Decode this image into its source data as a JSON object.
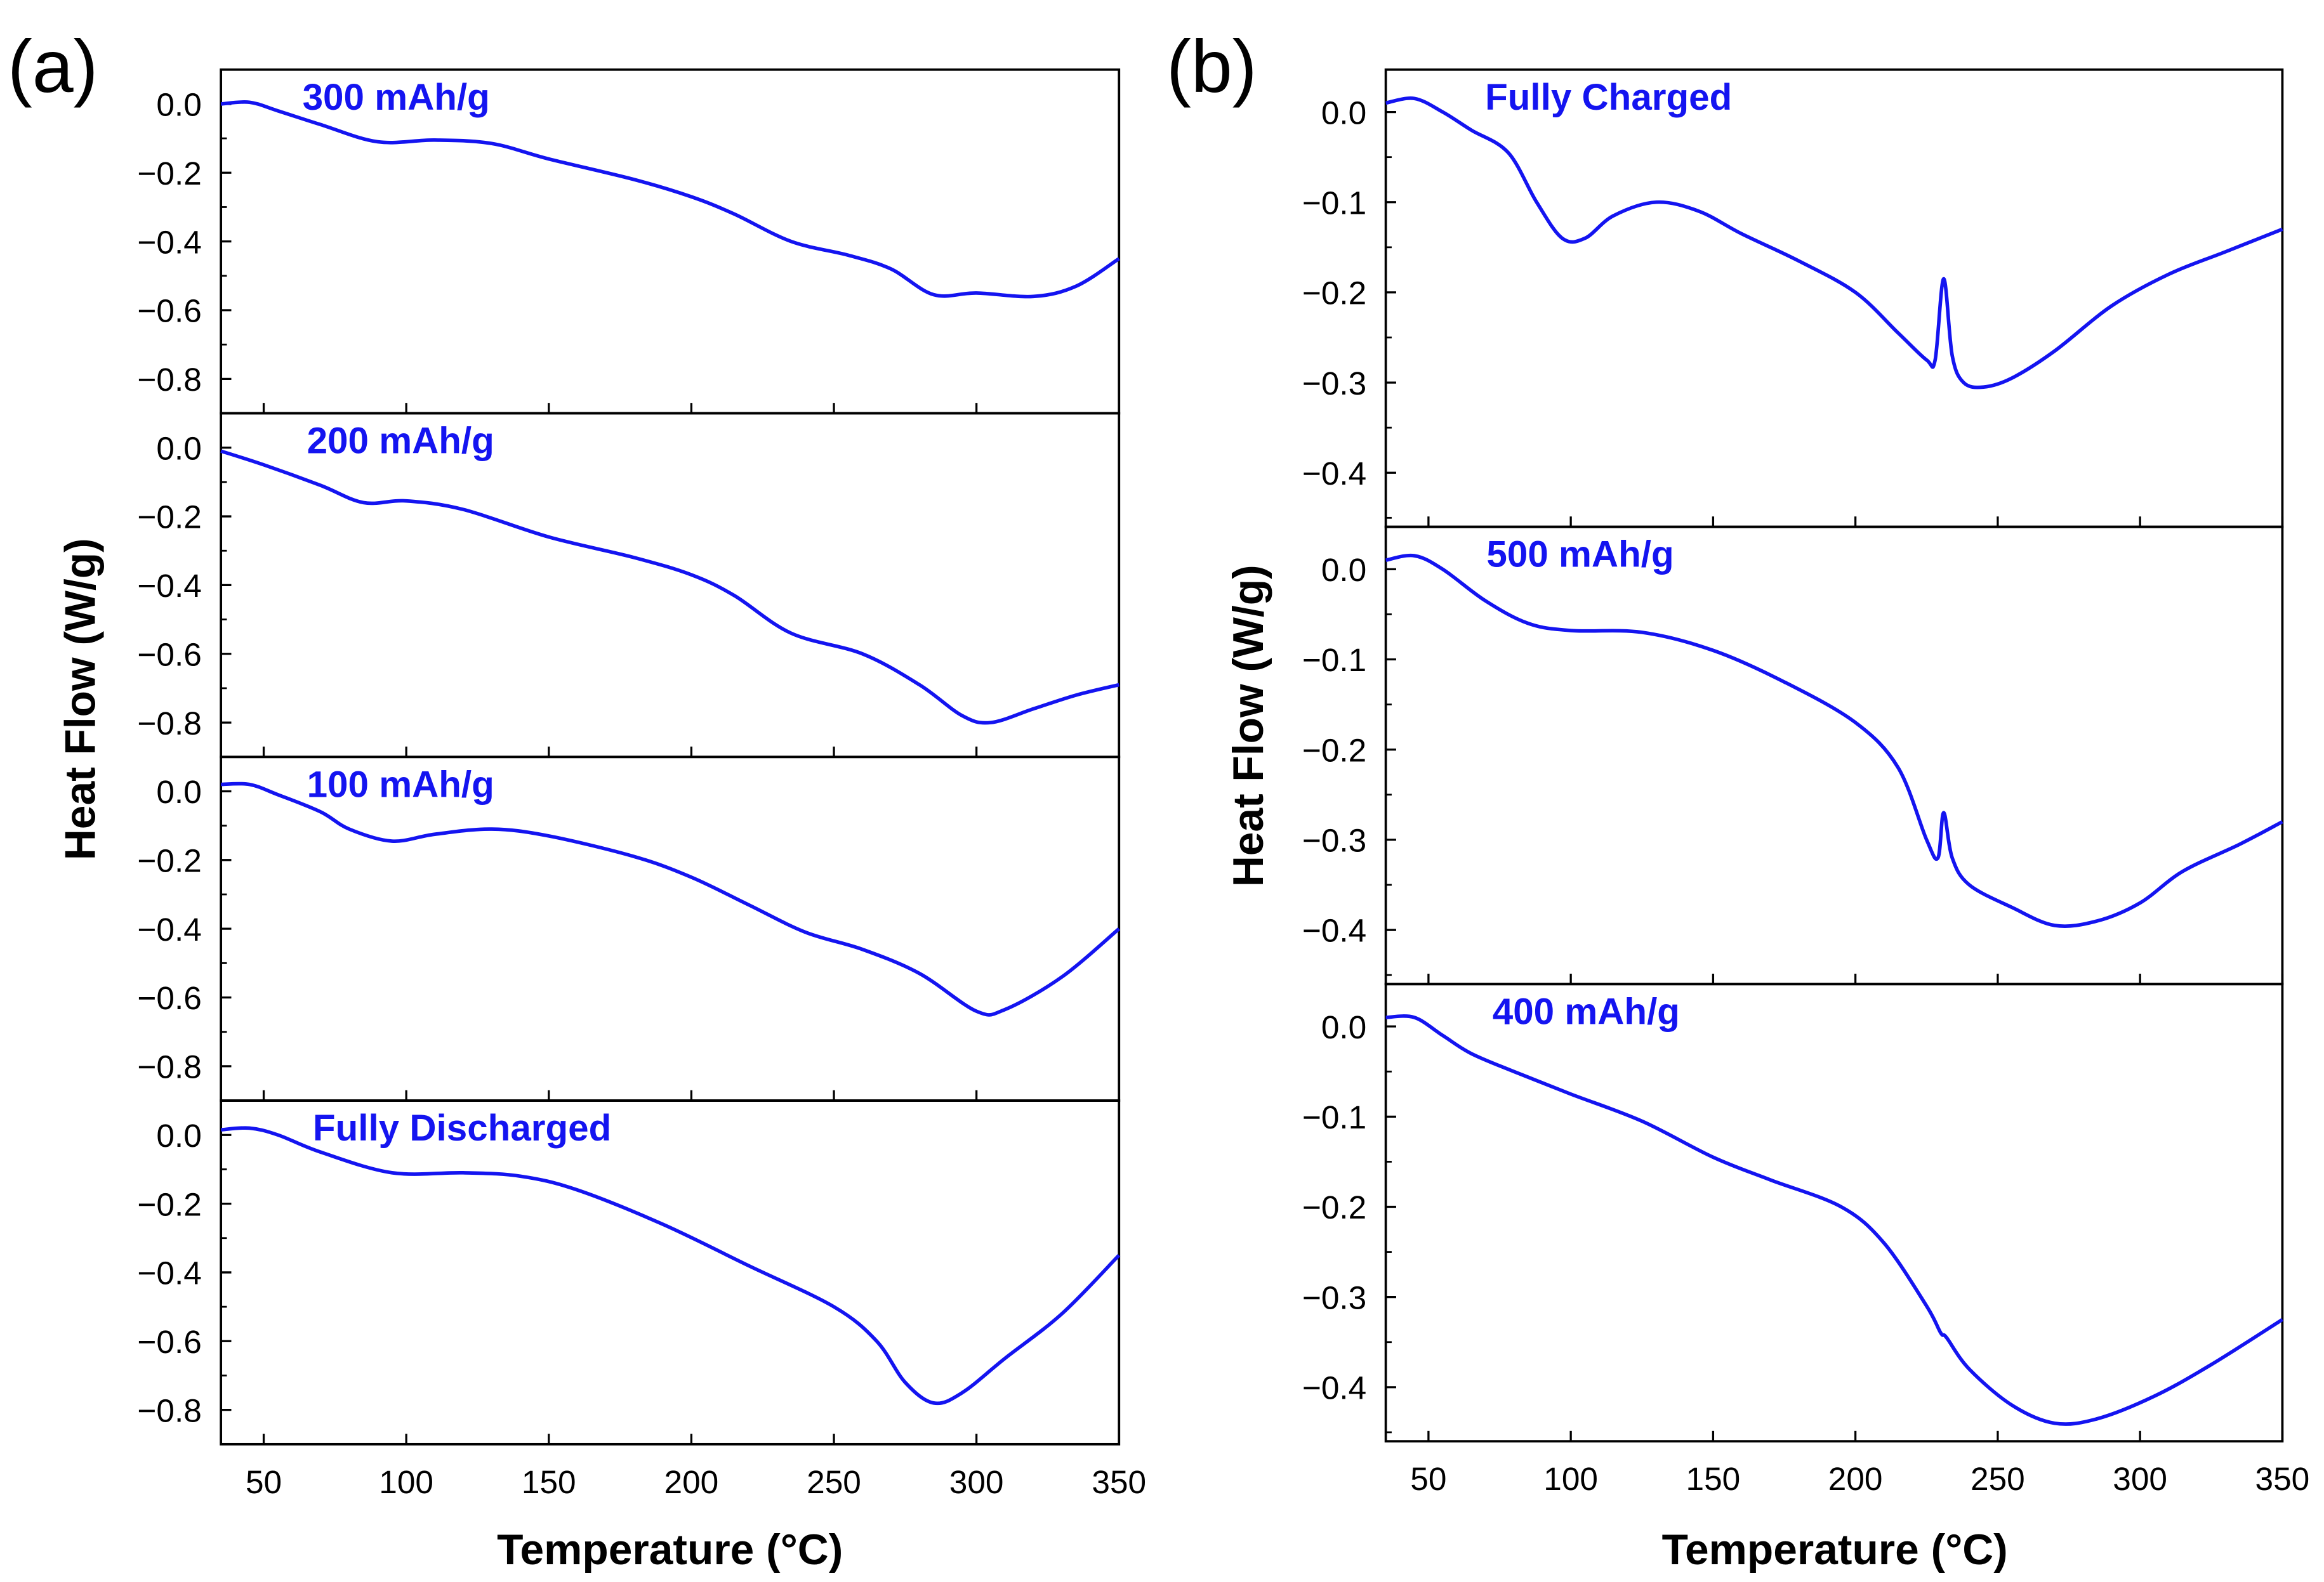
{
  "colors": {
    "curve": "#1414f0",
    "axis": "#000000"
  },
  "chart_data": [
    {
      "panel_label": "(a)",
      "type": "line",
      "xlabel": "Temperature (°C)",
      "ylabel": "Heat Flow (W/g)",
      "xlim": [
        35,
        350
      ],
      "xticks": [
        50,
        100,
        150,
        200,
        250,
        300,
        350
      ],
      "ylim": [
        -0.9,
        0.1
      ],
      "yticks": [
        0.0,
        -0.2,
        -0.4,
        -0.6,
        -0.8
      ],
      "yticks_display": [
        "0.0",
        "−0.2",
        "−0.4",
        "−0.6",
        "−0.8"
      ],
      "yminor": [
        -0.1,
        -0.3,
        -0.5,
        -0.7,
        -0.9
      ],
      "series": [
        {
          "name": "300 mAh/g",
          "x": [
            35,
            45,
            55,
            70,
            90,
            110,
            130,
            150,
            180,
            200,
            215,
            235,
            255,
            270,
            285,
            300,
            320,
            335,
            350
          ],
          "y": [
            0,
            0.005,
            -0.02,
            -0.06,
            -0.11,
            -0.105,
            -0.115,
            -0.16,
            -0.22,
            -0.27,
            -0.32,
            -0.4,
            -0.44,
            -0.48,
            -0.555,
            -0.55,
            -0.56,
            -0.53,
            -0.45
          ]
        },
        {
          "name": "200 mAh/g",
          "x": [
            35,
            50,
            70,
            85,
            100,
            120,
            150,
            180,
            200,
            215,
            235,
            260,
            280,
            295,
            305,
            320,
            335,
            350
          ],
          "y": [
            -0.01,
            -0.05,
            -0.11,
            -0.16,
            -0.155,
            -0.18,
            -0.26,
            -0.32,
            -0.37,
            -0.43,
            -0.54,
            -0.6,
            -0.69,
            -0.78,
            -0.8,
            -0.76,
            -0.72,
            -0.69
          ]
        },
        {
          "name": "100 mAh/g",
          "x": [
            35,
            45,
            55,
            70,
            80,
            95,
            110,
            130,
            150,
            180,
            200,
            220,
            240,
            260,
            280,
            300,
            310,
            330,
            350
          ],
          "y": [
            0.02,
            0.02,
            -0.01,
            -0.06,
            -0.11,
            -0.145,
            -0.125,
            -0.11,
            -0.13,
            -0.19,
            -0.25,
            -0.33,
            -0.41,
            -0.46,
            -0.53,
            -0.64,
            -0.635,
            -0.54,
            -0.4
          ]
        },
        {
          "name": "Fully Discharged",
          "x": [
            35,
            45,
            55,
            70,
            95,
            120,
            140,
            160,
            190,
            220,
            250,
            265,
            275,
            285,
            295,
            310,
            330,
            350
          ],
          "y": [
            0.015,
            0.02,
            0,
            -0.05,
            -0.11,
            -0.11,
            -0.12,
            -0.16,
            -0.26,
            -0.38,
            -0.5,
            -0.6,
            -0.72,
            -0.78,
            -0.75,
            -0.65,
            -0.52,
            -0.35
          ]
        }
      ]
    },
    {
      "panel_label": "(b)",
      "type": "line",
      "xlabel": "Temperature (°C)",
      "ylabel": "Heat Flow (W/g)",
      "xlim": [
        35,
        350
      ],
      "xticks": [
        50,
        100,
        150,
        200,
        250,
        300,
        350
      ],
      "ylim": [
        -0.46,
        0.047
      ],
      "yticks": [
        0.0,
        -0.1,
        -0.2,
        -0.3,
        -0.4
      ],
      "yticks_display": [
        "0.0",
        "−0.1",
        "−0.2",
        "−0.3",
        "−0.4"
      ],
      "yminor": [
        -0.05,
        -0.15,
        -0.25,
        -0.35,
        -0.45
      ],
      "series": [
        {
          "name": "Fully Charged",
          "x": [
            35,
            45,
            55,
            65,
            78,
            88,
            97,
            105,
            115,
            130,
            145,
            160,
            180,
            200,
            215,
            225,
            228,
            231,
            234,
            238,
            245,
            255,
            270,
            290,
            310,
            330,
            350
          ],
          "y": [
            0.01,
            0.015,
            0,
            -0.02,
            -0.045,
            -0.1,
            -0.14,
            -0.14,
            -0.115,
            -0.1,
            -0.11,
            -0.135,
            -0.165,
            -0.2,
            -0.245,
            -0.275,
            -0.275,
            -0.185,
            -0.27,
            -0.3,
            -0.305,
            -0.295,
            -0.265,
            -0.215,
            -0.18,
            -0.155,
            -0.13
          ]
        },
        {
          "name": "500 mAh/g",
          "x": [
            35,
            45,
            55,
            70,
            85,
            100,
            125,
            150,
            175,
            200,
            215,
            225,
            229,
            231,
            234,
            240,
            255,
            270,
            285,
            300,
            315,
            335,
            350
          ],
          "y": [
            0.01,
            0.015,
            0,
            -0.035,
            -0.06,
            -0.068,
            -0.07,
            -0.09,
            -0.125,
            -0.17,
            -0.22,
            -0.3,
            -0.32,
            -0.27,
            -0.32,
            -0.35,
            -0.375,
            -0.395,
            -0.39,
            -0.37,
            -0.335,
            -0.305,
            -0.28
          ]
        },
        {
          "name": "400 mAh/g",
          "x": [
            35,
            45,
            55,
            65,
            80,
            100,
            125,
            150,
            170,
            195,
            210,
            225,
            230,
            232,
            240,
            255,
            270,
            285,
            305,
            325,
            350
          ],
          "y": [
            0.01,
            0.01,
            -0.01,
            -0.03,
            -0.05,
            -0.075,
            -0.105,
            -0.145,
            -0.17,
            -0.2,
            -0.24,
            -0.31,
            -0.34,
            -0.345,
            -0.38,
            -0.42,
            -0.44,
            -0.435,
            -0.41,
            -0.375,
            -0.325
          ]
        }
      ]
    }
  ]
}
